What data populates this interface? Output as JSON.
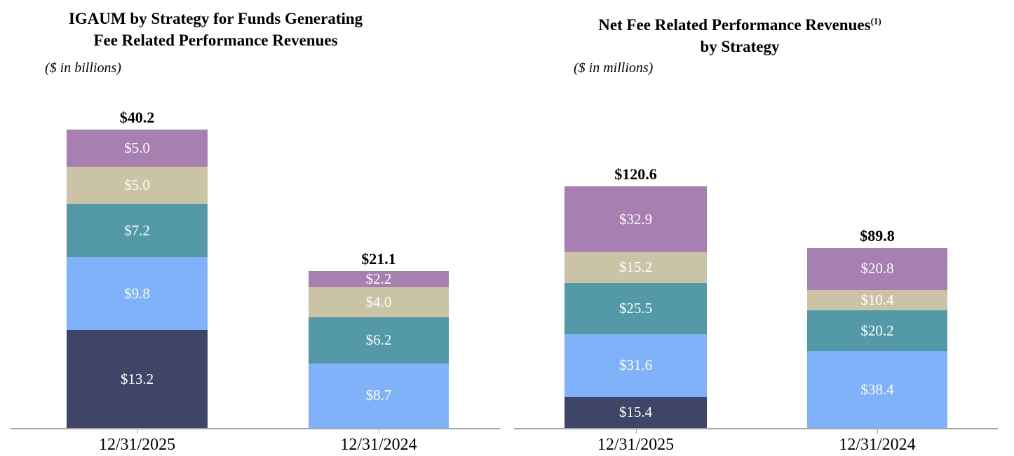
{
  "figure": {
    "background": "#FFFFFF",
    "axis_color": "#A6A6A6",
    "total_label_color": "#000000",
    "segment_label_color": "#FFFFFF"
  },
  "chart_data": [
    {
      "type": "bar",
      "stacked": true,
      "title_lines": [
        "IGAUM by Strategy for Funds Generating",
        "Fee Related Performance Revenues"
      ],
      "title_superscript": "",
      "units_note": "($ in billions)",
      "categories": [
        "12/31/2025",
        "12/31/2024"
      ],
      "ylim": [
        0,
        42
      ],
      "grid": false,
      "legend_position": "none",
      "bars": [
        {
          "category": "12/31/2025",
          "total_value": 40.2,
          "total_label": "$40.2",
          "segments_bottom_to_top": [
            {
              "value": 13.2,
              "label": "$13.2",
              "color": "#3E4566"
            },
            {
              "value": 9.8,
              "label": "$9.8",
              "color": "#7FB2F8"
            },
            {
              "value": 7.2,
              "label": "$7.2",
              "color": "#5399A7"
            },
            {
              "value": 5.0,
              "label": "$5.0",
              "color": "#CBC3A5"
            },
            {
              "value": 5.0,
              "label": "$5.0",
              "color": "#A77FB0"
            }
          ]
        },
        {
          "category": "12/31/2024",
          "total_value": 21.1,
          "total_label": "$21.1",
          "segments_bottom_to_top": [
            {
              "value": 8.7,
              "label": "$8.7",
              "color": "#7FB2F8"
            },
            {
              "value": 6.2,
              "label": "$6.2",
              "color": "#5399A7"
            },
            {
              "value": 4.0,
              "label": "$4.0",
              "color": "#CBC3A5"
            },
            {
              "value": 2.2,
              "label": "$2.2",
              "color": "#A77FB0"
            }
          ]
        }
      ]
    },
    {
      "type": "bar",
      "stacked": true,
      "title_lines": [
        "Net Fee Related Performance Revenues",
        "by Strategy"
      ],
      "title_superscript": "(1)",
      "units_note": "($ in millions)",
      "categories": [
        "12/31/2025",
        "12/31/2024"
      ],
      "ylim": [
        0,
        126
      ],
      "grid": false,
      "legend_position": "none",
      "bars": [
        {
          "category": "12/31/2025",
          "total_value": 120.6,
          "total_label": "$120.6",
          "segments_bottom_to_top": [
            {
              "value": 15.4,
              "label": "$15.4",
              "color": "#3E4566"
            },
            {
              "value": 31.6,
              "label": "$31.6",
              "color": "#7FB2F8"
            },
            {
              "value": 25.5,
              "label": "$25.5",
              "color": "#5399A7"
            },
            {
              "value": 15.2,
              "label": "$15.2",
              "color": "#CBC3A5"
            },
            {
              "value": 32.9,
              "label": "$32.9",
              "color": "#A77FB0"
            }
          ]
        },
        {
          "category": "12/31/2024",
          "total_value": 89.8,
          "total_label": "$89.8",
          "segments_bottom_to_top": [
            {
              "value": 38.4,
              "label": "$38.4",
              "color": "#7FB2F8"
            },
            {
              "value": 20.2,
              "label": "$20.2",
              "color": "#5399A7"
            },
            {
              "value": 10.4,
              "label": "$10.4",
              "color": "#CBC3A5"
            },
            {
              "value": 20.8,
              "label": "$20.8",
              "color": "#A77FB0"
            }
          ]
        }
      ]
    }
  ]
}
